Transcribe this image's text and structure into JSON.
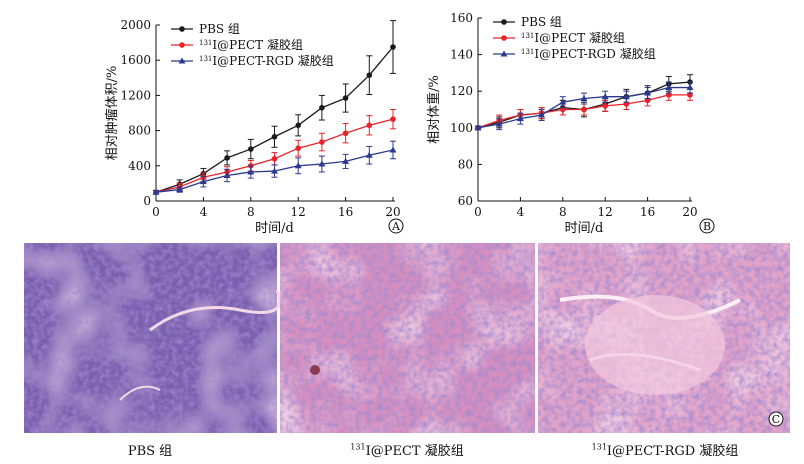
{
  "colors": {
    "pbs": "#1a1a1a",
    "pect": "#e8232a",
    "rgd": "#2b3a8f",
    "axis": "#111111",
    "stain_bg": "#d98fc0",
    "stain_dark": "#4b3f9c",
    "stain_light": "#efc6dc"
  },
  "chart_data": [
    {
      "id": "A",
      "type": "line",
      "panel_label": "A",
      "title": "",
      "xlabel": "时间/d",
      "ylabel": "相对肿瘤体积/%",
      "xlim": [
        0,
        20
      ],
      "ylim": [
        0,
        2000
      ],
      "xticks": [
        0,
        4,
        8,
        12,
        16,
        20
      ],
      "yticks": [
        0,
        400,
        800,
        1200,
        1600,
        2000
      ],
      "legend_position": "top-left",
      "series": [
        {
          "name": "PBS 组",
          "color_key": "pbs",
          "marker": "circle",
          "x": [
            0,
            2,
            4,
            6,
            8,
            10,
            12,
            14,
            16,
            18,
            20
          ],
          "y": [
            100,
            190,
            310,
            490,
            590,
            730,
            860,
            1060,
            1170,
            1430,
            1750
          ],
          "err": [
            20,
            50,
            60,
            80,
            110,
            120,
            120,
            140,
            160,
            220,
            300
          ]
        },
        {
          "name": "131I@PECT 凝胶组",
          "color_key": "pect",
          "marker": "circle",
          "x": [
            0,
            2,
            4,
            6,
            8,
            10,
            12,
            14,
            16,
            18,
            20
          ],
          "y": [
            100,
            160,
            270,
            330,
            400,
            480,
            600,
            670,
            770,
            860,
            930
          ],
          "err": [
            20,
            40,
            50,
            60,
            60,
            70,
            90,
            100,
            110,
            110,
            110
          ]
        },
        {
          "name": "131I@PECT-RGD 凝胶组",
          "color_key": "rgd",
          "marker": "triangle",
          "x": [
            0,
            2,
            4,
            6,
            8,
            10,
            12,
            14,
            16,
            18,
            20
          ],
          "y": [
            100,
            130,
            220,
            290,
            330,
            340,
            400,
            420,
            450,
            520,
            580
          ],
          "err": [
            20,
            30,
            60,
            70,
            70,
            70,
            90,
            90,
            80,
            100,
            100
          ]
        }
      ]
    },
    {
      "id": "B",
      "type": "line",
      "panel_label": "B",
      "title": "",
      "xlabel": "时间/d",
      "ylabel": "相对体重/%",
      "xlim": [
        0,
        20
      ],
      "ylim": [
        60,
        160
      ],
      "xticks": [
        0,
        4,
        8,
        12,
        16,
        20
      ],
      "yticks": [
        60,
        80,
        100,
        120,
        140,
        160
      ],
      "legend_position": "top-left",
      "series": [
        {
          "name": "PBS 组",
          "color_key": "pbs",
          "marker": "circle",
          "x": [
            0,
            2,
            4,
            6,
            8,
            10,
            12,
            14,
            16,
            18,
            20
          ],
          "y": [
            100,
            103,
            107,
            108,
            111,
            110,
            113,
            117,
            119,
            124,
            125
          ],
          "err": [
            1,
            3,
            3,
            3,
            4,
            4,
            4,
            4,
            4,
            4,
            4
          ]
        },
        {
          "name": "131I@PECT 凝胶组",
          "color_key": "pect",
          "marker": "circle",
          "x": [
            0,
            2,
            4,
            6,
            8,
            10,
            12,
            14,
            16,
            18,
            20
          ],
          "y": [
            100,
            104,
            107,
            108,
            110,
            110,
            112,
            113,
            115,
            118,
            118
          ],
          "err": [
            1,
            3,
            3,
            3,
            3,
            3,
            3,
            3,
            3,
            3,
            3
          ]
        },
        {
          "name": "131I@PECT-RGD 凝胶组",
          "color_key": "rgd",
          "marker": "triangle",
          "x": [
            0,
            2,
            4,
            6,
            8,
            10,
            12,
            14,
            16,
            18,
            20
          ],
          "y": [
            100,
            102,
            105,
            107,
            114,
            116,
            117,
            117,
            119,
            122,
            122
          ],
          "err": [
            1,
            3,
            3,
            3,
            3,
            3,
            3,
            3,
            3,
            3,
            3
          ]
        }
      ]
    }
  ],
  "panel_c_label": "C",
  "histology_captions": [
    "PBS 组",
    "131I@PECT 凝胶组",
    "131I@PECT-RGD 凝胶组"
  ],
  "caption_parts": [
    {
      "sup": "",
      "rest": "PBS 组"
    },
    {
      "sup": "131",
      "rest": "I@PECT 凝胶组"
    },
    {
      "sup": "131",
      "rest": "I@PECT-RGD 凝胶组"
    }
  ]
}
